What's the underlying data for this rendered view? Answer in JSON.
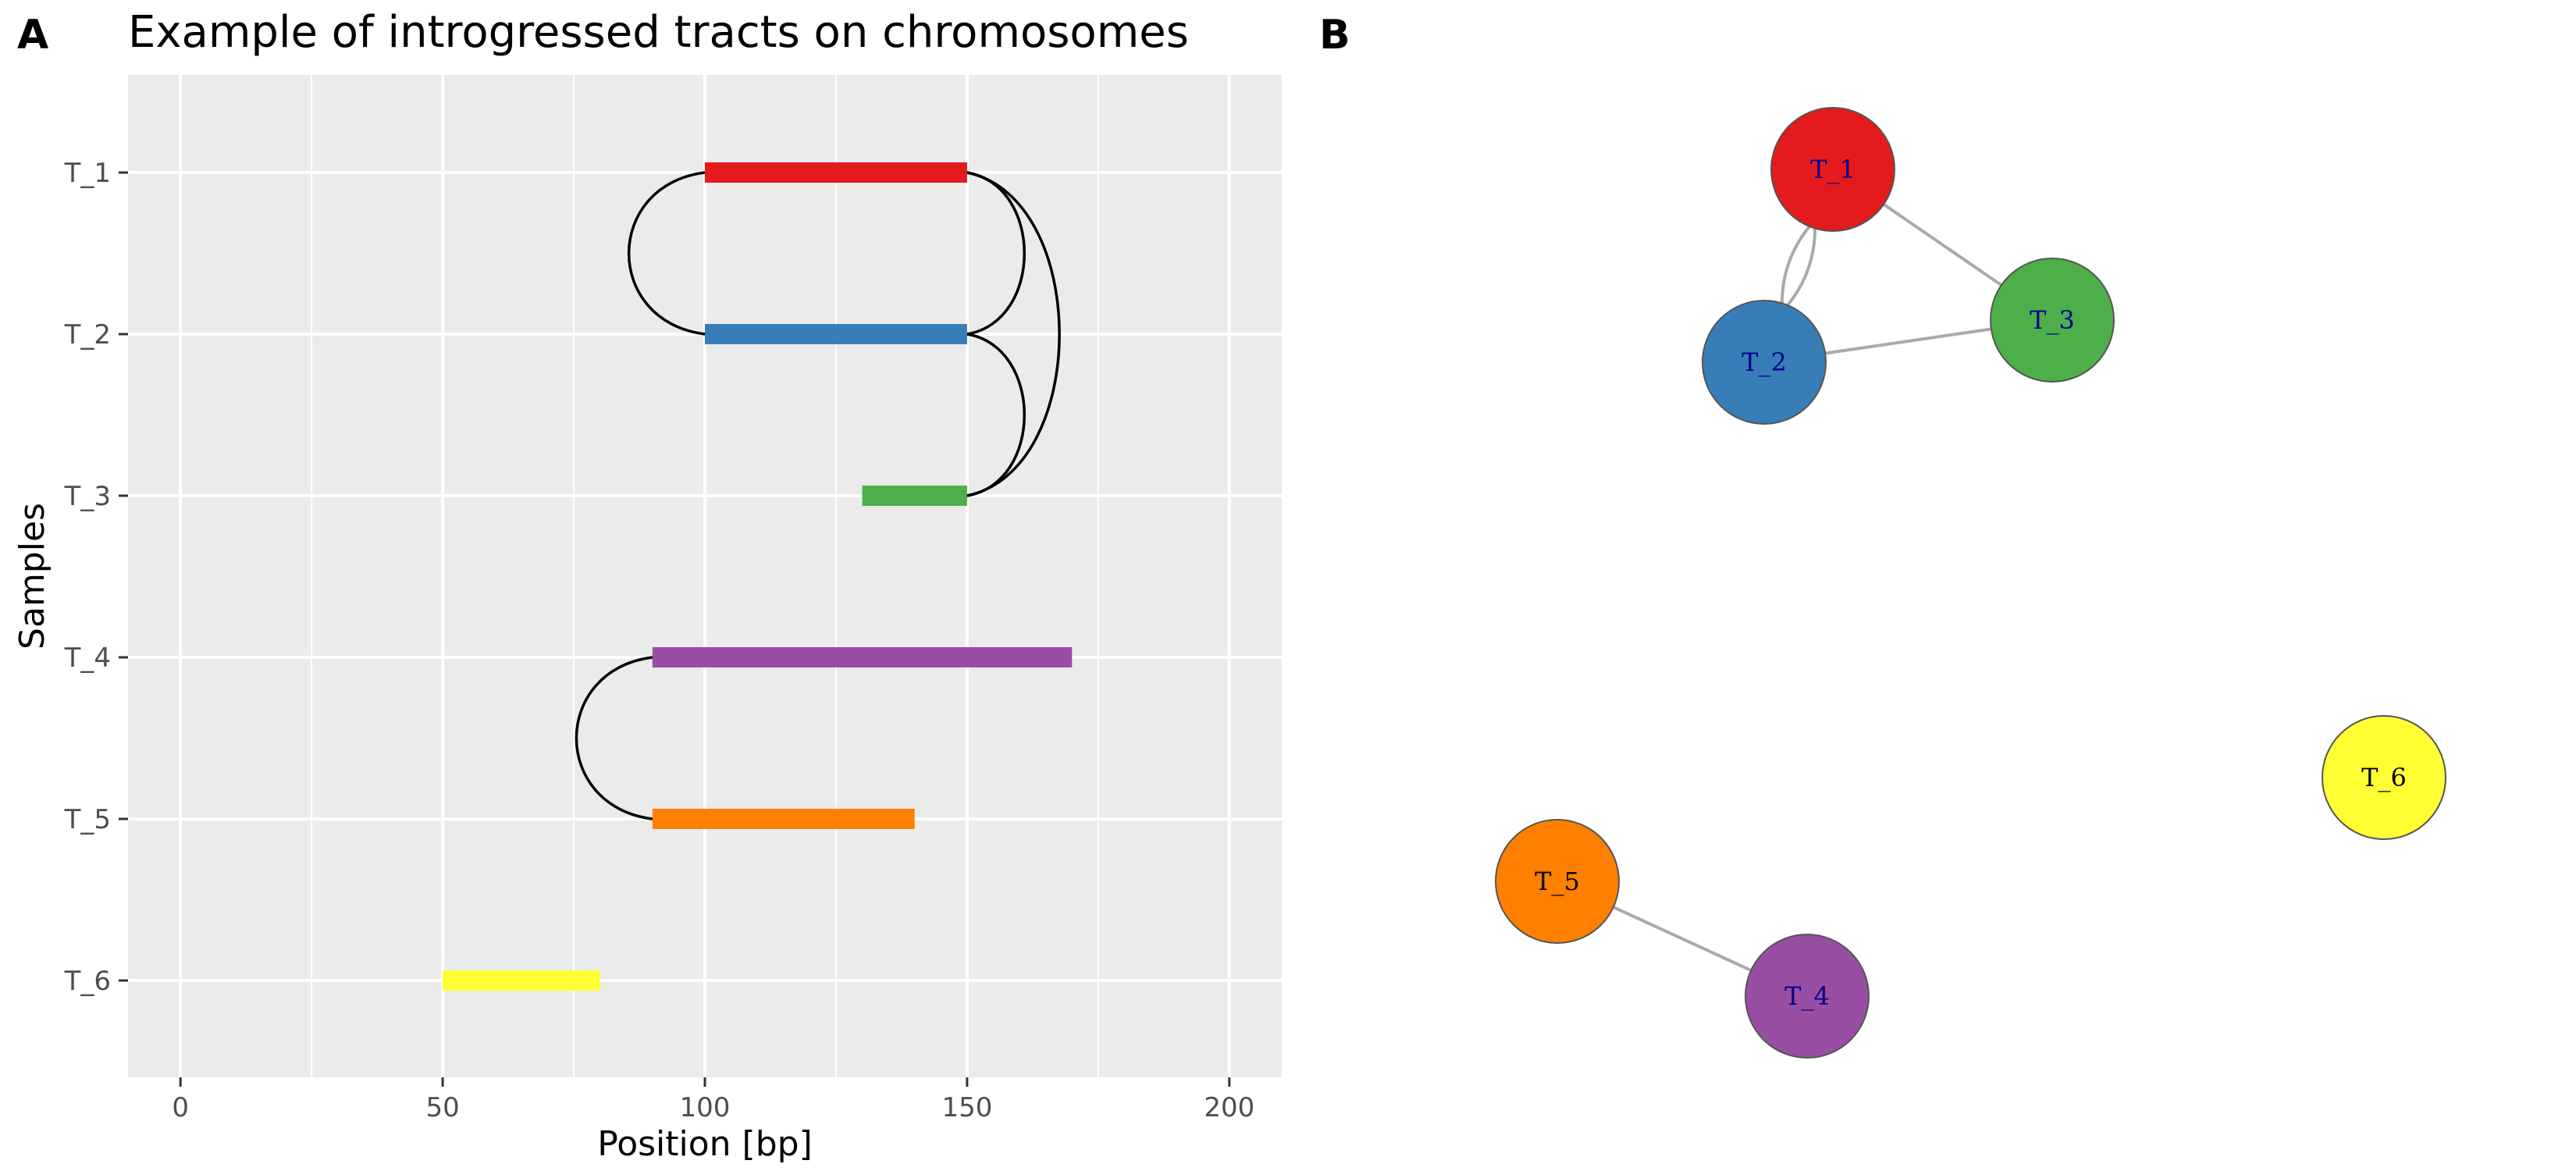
{
  "panels": {
    "A": {
      "letter": "A"
    },
    "B": {
      "letter": "B"
    }
  },
  "chart_data": [
    {
      "type": "bar",
      "subtype": "horizontal-range",
      "title": "Example of introgressed tracts on chromosomes",
      "xlabel": "Position [bp]",
      "ylabel": "Samples",
      "xlim": [
        -10,
        210
      ],
      "xticks": [
        0,
        50,
        100,
        150,
        200
      ],
      "categories": [
        "T_1",
        "T_2",
        "T_3",
        "T_4",
        "T_5",
        "T_6"
      ],
      "grid": true,
      "tracts": [
        {
          "sample": "T_1",
          "start": 100,
          "end": 150,
          "color": "#E41A1C"
        },
        {
          "sample": "T_2",
          "start": 100,
          "end": 150,
          "color": "#377EB8"
        },
        {
          "sample": "T_3",
          "start": 130,
          "end": 150,
          "color": "#4DAF4A"
        },
        {
          "sample": "T_4",
          "start": 90,
          "end": 170,
          "color": "#984EA3"
        },
        {
          "sample": "T_5",
          "start": 90,
          "end": 140,
          "color": "#FF7F00"
        },
        {
          "sample": "T_6",
          "start": 50,
          "end": 80,
          "color": "#FFFF33"
        }
      ],
      "arcs": [
        {
          "from": "T_1",
          "to": "T_2",
          "side": "left"
        },
        {
          "from": "T_1",
          "to": "T_2",
          "side": "right"
        },
        {
          "from": "T_1",
          "to": "T_3",
          "side": "right"
        },
        {
          "from": "T_2",
          "to": "T_3",
          "side": "right"
        },
        {
          "from": "T_4",
          "to": "T_5",
          "side": "left"
        }
      ]
    },
    {
      "type": "network",
      "nodes": [
        {
          "id": "T_1",
          "label": "T_1",
          "color": "#E41A1C",
          "label_color": "#00008B"
        },
        {
          "id": "T_2",
          "label": "T_2",
          "color": "#377EB8",
          "label_color": "#00008B"
        },
        {
          "id": "T_3",
          "label": "T_3",
          "color": "#4DAF4A",
          "label_color": "#00008B"
        },
        {
          "id": "T_4",
          "label": "T_4",
          "color": "#984EA3",
          "label_color": "#00008B"
        },
        {
          "id": "T_5",
          "label": "T_5",
          "color": "#FF7F00",
          "label_color": "#000000"
        },
        {
          "id": "T_6",
          "label": "T_6",
          "color": "#FFFF33",
          "label_color": "#000000"
        }
      ],
      "edges": [
        {
          "from": "T_1",
          "to": "T_2"
        },
        {
          "from": "T_1",
          "to": "T_2"
        },
        {
          "from": "T_1",
          "to": "T_3"
        },
        {
          "from": "T_2",
          "to": "T_3"
        },
        {
          "from": "T_4",
          "to": "T_5"
        }
      ],
      "edge_color": "#AAAAAA"
    }
  ]
}
